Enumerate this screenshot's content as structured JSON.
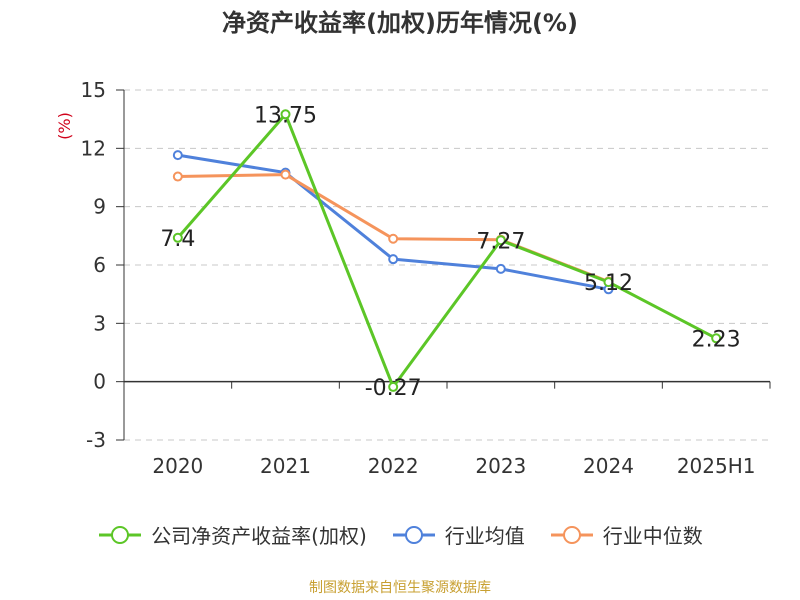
{
  "title": "净资产收益率(加权)历年情况(%)",
  "source": "制图数据来自恒生聚源数据库",
  "chart_data": {
    "type": "line",
    "title": "净资产收益率(加权)历年情况(%)",
    "ylabel": "(%)",
    "categories": [
      "2020",
      "2021",
      "2022",
      "2023",
      "2024",
      "2025H1"
    ],
    "ylim": [
      -3,
      15
    ],
    "yticks": [
      "-3",
      "0",
      "3",
      "6",
      "9",
      "12",
      "15"
    ],
    "grid": true,
    "legend_position": "bottom",
    "series": [
      {
        "name": "公司净资产收益率(加权)",
        "color": "#5cc627",
        "values": [
          7.4,
          13.75,
          -0.27,
          7.27,
          5.12,
          2.23
        ],
        "labels": [
          "7.4",
          "13.75",
          "-0.27",
          "7.27",
          "5.12",
          "2.23"
        ]
      },
      {
        "name": "行业均值",
        "color": "#4f81db",
        "values": [
          11.65,
          10.75,
          6.3,
          5.8,
          4.75,
          null
        ]
      },
      {
        "name": "行业中位数",
        "color": "#f5945c",
        "values": [
          10.55,
          10.65,
          7.35,
          7.3,
          5.15,
          null
        ]
      }
    ]
  }
}
